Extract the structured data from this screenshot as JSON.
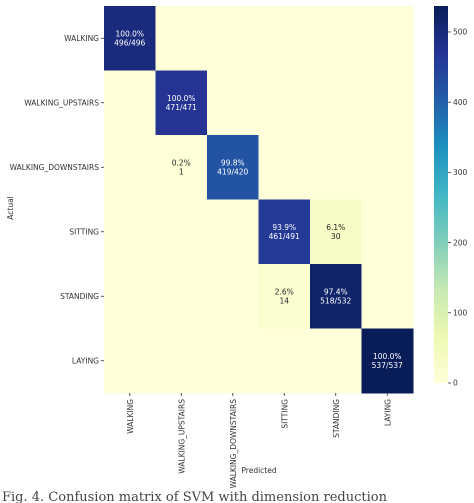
{
  "chart_data": {
    "type": "heatmap",
    "title": "",
    "xlabel": "Predicted",
    "ylabel": "Actual",
    "categories": [
      "WALKING",
      "WALKING_UPSTAIRS",
      "WALKING_DOWNSTAIRS",
      "SITTING",
      "STANDING",
      "LAYING"
    ],
    "cells": [
      {
        "row": 0,
        "col": 0,
        "value": 496,
        "pct": "100.0%",
        "count": "496/496"
      },
      {
        "row": 1,
        "col": 1,
        "value": 471,
        "pct": "100.0%",
        "count": "471/471"
      },
      {
        "row": 2,
        "col": 1,
        "value": 1,
        "pct": "0.2%",
        "count": "1"
      },
      {
        "row": 2,
        "col": 2,
        "value": 419,
        "pct": "99.8%",
        "count": "419/420"
      },
      {
        "row": 3,
        "col": 3,
        "value": 461,
        "pct": "93.9%",
        "count": "461/491"
      },
      {
        "row": 3,
        "col": 4,
        "value": 30,
        "pct": "6.1%",
        "count": "30"
      },
      {
        "row": 4,
        "col": 3,
        "value": 14,
        "pct": "2.6%",
        "count": "14"
      },
      {
        "row": 4,
        "col": 4,
        "value": 518,
        "pct": "97.4%",
        "count": "518/532"
      },
      {
        "row": 5,
        "col": 5,
        "value": 537,
        "pct": "100.0%",
        "count": "537/537"
      }
    ],
    "colorbar": {
      "colormap": "YlGnBu",
      "min": 0,
      "max": 537,
      "ticks": [
        0,
        100,
        200,
        300,
        400,
        500
      ]
    },
    "colors": {
      "low": "#ffffd9",
      "high": "#081d58"
    }
  },
  "caption": "Fig. 4. Confusion matrix of SVM with dimension reduction"
}
